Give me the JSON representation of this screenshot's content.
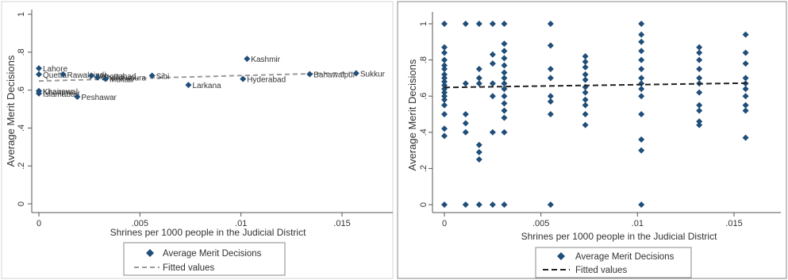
{
  "colors": {
    "marker": "#1f4e79",
    "axis": "#555555",
    "left_fit": "#9a9a9a",
    "right_fit": "#222222",
    "bg": "#ffffff",
    "left_border": "#d4d4d4",
    "right_border": "#8a8a8a"
  },
  "chart_data": [
    {
      "type": "scatter",
      "xlabel": "Shrines per 1000 people in the Judicial District",
      "ylabel": "Average Merit Decisions",
      "xlim": [
        -0.0005,
        0.0175
      ],
      "ylim": [
        -0.03,
        1.03
      ],
      "x_ticks": [
        0,
        0.005,
        0.01,
        0.015
      ],
      "x_tick_labels": [
        "0",
        ".005",
        ".01",
        ".015"
      ],
      "y_ticks": [
        0,
        0.2,
        0.4,
        0.6,
        0.8,
        1
      ],
      "y_tick_labels": [
        "0",
        ".2",
        ".4",
        ".6",
        ".8",
        "1"
      ],
      "legend": [
        "Average Merit Decisions",
        "Fitted values"
      ],
      "legend_position": "bottom",
      "fit_line": {
        "x": [
          0,
          0.0157
        ],
        "y": [
          0.648,
          0.693
        ],
        "style": "dashed"
      },
      "points": [
        {
          "label": "Lahore",
          "x": 0.0,
          "y": 0.715
        },
        {
          "label": "Quetta",
          "x": 0.0,
          "y": 0.683
        },
        {
          "label": "Khanewal",
          "x": 0.0,
          "y": 0.595
        },
        {
          "label": "Khairpur",
          "x": 0.0,
          "y": 0.595
        },
        {
          "label": "Islamabad",
          "x": 0.0,
          "y": 0.582
        },
        {
          "label": "Rawalpindi",
          "x": 0.0012,
          "y": 0.683
        },
        {
          "label": "Peshawar",
          "x": 0.0019,
          "y": 0.565
        },
        {
          "label": "Abbottabad",
          "x": 0.0026,
          "y": 0.676
        },
        {
          "label": "Sheikhupura",
          "x": 0.0029,
          "y": 0.667
        },
        {
          "label": "Multan",
          "x": 0.0033,
          "y": 0.659
        },
        {
          "label": "Sibi",
          "x": 0.0056,
          "y": 0.676
        },
        {
          "label": "Larkana",
          "x": 0.0074,
          "y": 0.627
        },
        {
          "label": "Kashmir",
          "x": 0.0103,
          "y": 0.765
        },
        {
          "label": "Hyderabad",
          "x": 0.0101,
          "y": 0.659
        },
        {
          "label": "Bahawalpur",
          "x": 0.0134,
          "y": 0.684
        },
        {
          "label": "Sukkur",
          "x": 0.0157,
          "y": 0.689
        }
      ]
    },
    {
      "type": "scatter",
      "xlabel": "Shrines per 1000 people in the Judicial District",
      "ylabel": "Average Merit Decisions",
      "xlim": [
        -0.0005,
        0.0173
      ],
      "ylim": [
        -0.03,
        1.03
      ],
      "x_ticks": [
        0,
        0.005,
        0.01,
        0.015
      ],
      "x_tick_labels": [
        "0",
        ".005",
        ".01",
        ".015"
      ],
      "y_ticks": [
        0,
        0.2,
        0.4,
        0.6,
        0.8,
        1
      ],
      "y_tick_labels": [
        "0",
        ".2",
        ".4",
        ".6",
        ".8",
        "1"
      ],
      "legend": [
        "Average Merit Decisions",
        "Fitted values"
      ],
      "legend_position": "bottom",
      "fit_line": {
        "x": [
          0,
          0.0157
        ],
        "y": [
          0.648,
          0.672
        ],
        "style": "dashed"
      },
      "series": [
        {
          "x": 0.0,
          "y": [
            1,
            0.87,
            0.84,
            0.8,
            0.77,
            0.75,
            0.72,
            0.7,
            0.68,
            0.66,
            0.64,
            0.62,
            0.6,
            0.58,
            0.55,
            0.5,
            0.42,
            0.38,
            0
          ]
        },
        {
          "x": 0.0011,
          "y": [
            1,
            0.67,
            0.5,
            0.45,
            0.4,
            0
          ]
        },
        {
          "x": 0.0018,
          "y": [
            1,
            0.75,
            0.7,
            0.67,
            0.33,
            0.29,
            0.25,
            0
          ]
        },
        {
          "x": 0.0025,
          "y": [
            1,
            0.83,
            0.78,
            0.67,
            0.6,
            0.4,
            0
          ]
        },
        {
          "x": 0.0031,
          "y": [
            1,
            0.89,
            0.85,
            0.81,
            0.77,
            0.73,
            0.7,
            0.67,
            0.64,
            0.6,
            0.56,
            0.52,
            0.48,
            0.4,
            0
          ]
        },
        {
          "x": 0.0055,
          "y": [
            1,
            0.88,
            0.75,
            0.7,
            0.6,
            0.57,
            0.5,
            0
          ]
        },
        {
          "x": 0.0073,
          "y": [
            0.82,
            0.79,
            0.76,
            0.72,
            0.69,
            0.65,
            0.62,
            0.58,
            0.55,
            0.5,
            0.44
          ]
        },
        {
          "x": 0.0102,
          "y": [
            1,
            0.94,
            0.9,
            0.85,
            0.8,
            0.75,
            0.7,
            0.67,
            0.64,
            0.6,
            0.5,
            0.36,
            0.3,
            0
          ]
        },
        {
          "x": 0.0132,
          "y": [
            0.87,
            0.84,
            0.8,
            0.75,
            0.7,
            0.67,
            0.62,
            0.55,
            0.52,
            0.46,
            0.44
          ]
        },
        {
          "x": 0.0156,
          "y": [
            0.94,
            0.84,
            0.78,
            0.7,
            0.67,
            0.64,
            0.6,
            0.55,
            0.52,
            0.37
          ]
        }
      ]
    }
  ]
}
